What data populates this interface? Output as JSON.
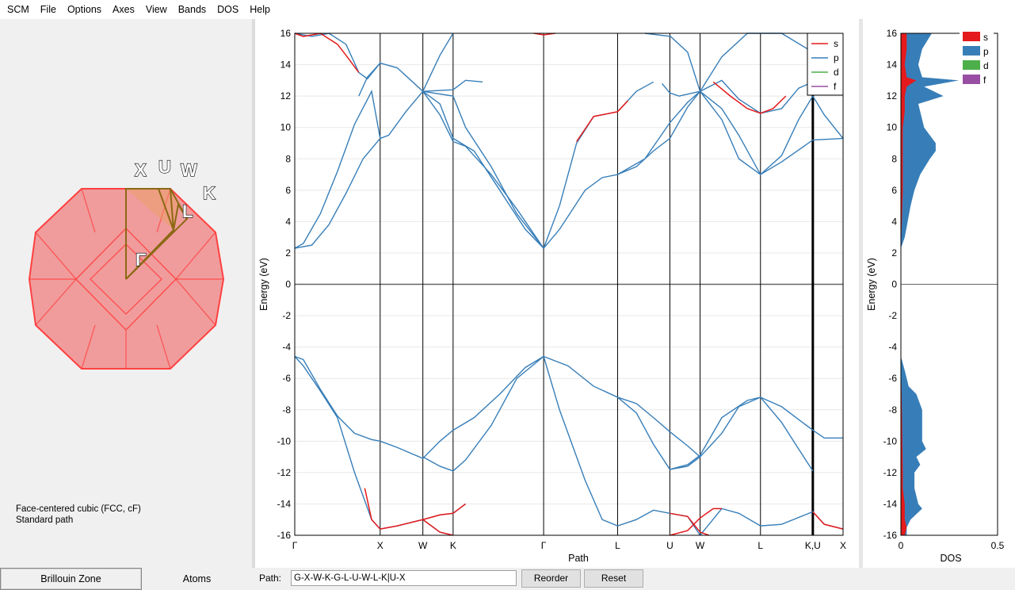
{
  "menu": [
    "SCM",
    "File",
    "Options",
    "Axes",
    "View",
    "Bands",
    "DOS",
    "Help"
  ],
  "brillouin": {
    "points": {
      "X": "X",
      "U": "U",
      "W": "W",
      "K": "K",
      "L": "L",
      "G": "Γ"
    },
    "lattice_line1": "Face-centered cubic (FCC, cF)",
    "lattice_line2": "Standard path",
    "fill_color": "#f08080",
    "edge_color": "#ff4040",
    "path_color": "#8b6914"
  },
  "tabs": {
    "brillouin": "Brillouin Zone",
    "atoms": "Atoms"
  },
  "bottom": {
    "path_label": "Path:",
    "path_value": "G-X-W-K-G-L-U-W-L-K|U-X",
    "reorder": "Reorder",
    "reset": "Reset"
  },
  "chart_data": [
    {
      "type": "line",
      "xlabel": "Path",
      "ylabel": "Energy (eV)",
      "ylim": [
        -16,
        16
      ],
      "yticks": [
        -16,
        -14,
        -12,
        -10,
        -8,
        -6,
        -4,
        -2,
        0,
        2,
        4,
        6,
        8,
        10,
        12,
        14,
        16
      ],
      "kpoints": [
        {
          "label": "Γ",
          "x": 0
        },
        {
          "label": "X",
          "x": 1.0
        },
        {
          "label": "W",
          "x": 1.5
        },
        {
          "label": "K",
          "x": 1.854
        },
        {
          "label": "Γ",
          "x": 2.914
        },
        {
          "label": "L",
          "x": 3.78
        },
        {
          "label": "U",
          "x": 4.392
        },
        {
          "label": "W",
          "x": 4.746
        },
        {
          "label": "L",
          "x": 5.453
        },
        {
          "label": "K,U",
          "x": 6.066
        },
        {
          "label": "X",
          "x": 6.42
        }
      ],
      "legend": [
        "s",
        "p",
        "d",
        "f"
      ],
      "legend_placement": "top-right",
      "colors": {
        "s": "#e41a1c",
        "p": "#377eb8",
        "d": "#4daf4a",
        "f": "#984ea3"
      },
      "series": [
        {
          "x": [
            0,
            0.1,
            0.3,
            0.5,
            0.7,
            0.9,
            1.0
          ],
          "y": [
            2.3,
            2.6,
            4.5,
            7.2,
            10.2,
            12.3,
            9.3
          ]
        },
        {
          "x": [
            0,
            0.2,
            0.4,
            0.6,
            0.8,
            1.0
          ],
          "y": [
            2.3,
            2.5,
            3.8,
            5.8,
            8.0,
            9.3
          ]
        },
        {
          "x": [
            0,
            0.2,
            0.4,
            0.6,
            0.75,
            0.85,
            1.0
          ],
          "y": [
            16,
            15.8,
            16,
            15.3,
            13.5,
            13.1,
            14.1
          ]
        },
        {
          "x": [
            0.75,
            0.85,
            1.0,
            1.2,
            1.5
          ],
          "y": [
            12.0,
            13.2,
            14.1,
            13.8,
            12.3
          ]
        },
        {
          "x": [
            1.0,
            1.1,
            1.3,
            1.5
          ],
          "y": [
            9.3,
            9.5,
            11.0,
            12.3
          ]
        },
        {
          "x": [
            1.5,
            1.7,
            1.854
          ],
          "y": [
            12.3,
            14.6,
            16
          ]
        },
        {
          "x": [
            1.5,
            1.854,
            2.0,
            2.2
          ],
          "y": [
            12.3,
            12.4,
            13.0,
            12.9
          ]
        },
        {
          "x": [
            1.5,
            1.7,
            1.854,
            2.1,
            2.4,
            2.7,
            2.914
          ],
          "y": [
            12.3,
            11.5,
            9.3,
            8.5,
            6.0,
            3.5,
            2.3
          ]
        },
        {
          "x": [
            1.5,
            1.854,
            2.0,
            2.3,
            2.6,
            2.914
          ],
          "y": [
            12.3,
            12.0,
            10.0,
            7.5,
            4.5,
            2.3
          ]
        },
        {
          "x": [
            1.5,
            1.7,
            1.854,
            2.0,
            2.3,
            2.6,
            2.914
          ],
          "y": [
            12.3,
            10.8,
            9.1,
            8.8,
            7.0,
            4.8,
            2.3
          ]
        },
        {
          "x": [
            2.914,
            3.1,
            3.4,
            3.6,
            3.78
          ],
          "y": [
            2.3,
            3.5,
            6.0,
            6.8,
            7.0
          ]
        },
        {
          "x": [
            2.914,
            3.1,
            3.3,
            3.5,
            3.78,
            4.0,
            4.2
          ],
          "y": [
            2.3,
            5.0,
            9.0,
            10.7,
            11.0,
            12.3,
            12.9
          ]
        },
        {
          "x": [
            3.78,
            4.0,
            4.2,
            4.392,
            4.6,
            4.746
          ],
          "y": [
            7.0,
            7.5,
            8.5,
            9.3,
            11.3,
            12.3
          ]
        },
        {
          "x": [
            3.78,
            4.1,
            4.392,
            4.6,
            4.746
          ],
          "y": [
            7.0,
            8.0,
            10.3,
            11.6,
            12.3
          ]
        },
        {
          "x": [
            4.3,
            4.392,
            4.5,
            4.746
          ],
          "y": [
            12.8,
            12.2,
            12.0,
            12.3
          ]
        },
        {
          "x": [
            4.1,
            4.4,
            4.6,
            4.746
          ],
          "y": [
            16,
            15.8,
            14.8,
            12.3
          ]
        },
        {
          "x": [
            4.746,
            5.0,
            5.2,
            5.453,
            5.7,
            5.9,
            6.066
          ],
          "y": [
            12.3,
            11.2,
            9.5,
            7.0,
            8.2,
            10.5,
            12.0
          ]
        },
        {
          "x": [
            4.746,
            5.0,
            5.2,
            5.453,
            5.7,
            6.066,
            6.42
          ],
          "y": [
            12.3,
            10.5,
            8.0,
            7.0,
            7.8,
            9.2,
            9.3
          ]
        },
        {
          "x": [
            4.746,
            5.0,
            5.2,
            5.453,
            5.7,
            5.9,
            6.066
          ],
          "y": [
            12.3,
            13.0,
            11.8,
            10.9,
            11.2,
            12.5,
            12.9
          ]
        },
        {
          "x": [
            6.066,
            6.2,
            6.42
          ],
          "y": [
            12.0,
            10.8,
            9.3
          ]
        },
        {
          "x": [
            4.746,
            5.0,
            5.3,
            5.7,
            6.066,
            6.2
          ],
          "y": [
            12.3,
            14.5,
            16,
            16,
            14.8,
            12.5
          ]
        },
        {
          "x": [
            0,
            0.1,
            0.3,
            0.5,
            0.7,
            0.9,
            1.0
          ],
          "y": [
            -4.6,
            -5.2,
            -6.8,
            -8.5,
            -12.0,
            -15.0,
            -15.6
          ]
        },
        {
          "x": [
            0,
            0.1,
            0.3,
            0.5,
            0.7,
            0.9,
            1.0
          ],
          "y": [
            -4.6,
            -4.8,
            -6.7,
            -8.4,
            -9.5,
            -9.9,
            -10.0
          ]
        },
        {
          "x": [
            1.0,
            1.2,
            1.5,
            1.7,
            1.854,
            2.0
          ],
          "y": [
            -15.6,
            -15.4,
            -15.0,
            -14.7,
            -14.6,
            -14.0
          ]
        },
        {
          "x": [
            1.0,
            1.2,
            1.5,
            1.7,
            1.854,
            2.1,
            2.4,
            2.7,
            2.914
          ],
          "y": [
            -10.0,
            -10.4,
            -11.1,
            -10.0,
            -9.3,
            -8.5,
            -7.0,
            -5.3,
            -4.6
          ]
        },
        {
          "x": [
            1.5,
            1.7,
            1.854,
            2.0,
            2.3,
            2.6,
            2.914
          ],
          "y": [
            -11.0,
            -11.6,
            -11.9,
            -11.2,
            -9.0,
            -6.0,
            -4.6
          ]
        },
        {
          "x": [
            1.5,
            1.7,
            1.854
          ],
          "y": [
            -15.0,
            -15.8,
            -16
          ]
        },
        {
          "x": [
            2.914,
            3.1,
            3.4,
            3.6,
            3.78,
            4.0,
            4.2,
            4.392,
            4.6,
            4.746
          ],
          "y": [
            -4.6,
            -8.0,
            -12.5,
            -15.0,
            -15.4,
            -15.0,
            -14.4,
            -14.6,
            -14.8,
            -16
          ]
        },
        {
          "x": [
            2.914,
            3.2,
            3.5,
            3.78,
            4.0,
            4.2,
            4.392,
            4.6,
            4.746
          ],
          "y": [
            -4.6,
            -5.2,
            -6.5,
            -7.2,
            -7.6,
            -8.5,
            -9.4,
            -10.3,
            -11.0
          ]
        },
        {
          "x": [
            4.392,
            4.6,
            4.746,
            5.0,
            5.3,
            5.453,
            5.7,
            6.066,
            6.2,
            6.42
          ],
          "y": [
            -11.8,
            -11.5,
            -10.9,
            -8.5,
            -7.4,
            -7.2,
            -7.8,
            -9.3,
            -9.8,
            -9.8
          ]
        },
        {
          "x": [
            3.78,
            4.0,
            4.2,
            4.392,
            4.6,
            4.746,
            5.0,
            5.2,
            5.453,
            5.7,
            5.9,
            6.066
          ],
          "y": [
            -7.2,
            -8.2,
            -10.2,
            -11.8,
            -11.6,
            -11.0,
            -9.5,
            -7.8,
            -7.2,
            -8.8,
            -10.5,
            -11.9
          ]
        },
        {
          "x": [
            4.746,
            5.0,
            5.2,
            5.453,
            5.7,
            6.066,
            6.2,
            6.42
          ],
          "y": [
            -16,
            -14.3,
            -14.6,
            -15.4,
            -15.3,
            -14.5,
            -15.3,
            -15.6
          ]
        }
      ],
      "s_segments": [
        {
          "x": [
            0,
            0.1,
            0.3,
            0.5,
            0.6,
            0.75
          ],
          "y": [
            16,
            15.8,
            16,
            15.3,
            14.6,
            13.5
          ]
        },
        {
          "x": [
            2.8,
            2.914,
            3.05
          ],
          "y": [
            16,
            15.9,
            16
          ]
        },
        {
          "x": [
            3.3,
            3.5,
            3.78,
            3.9
          ],
          "y": [
            9.1,
            10.7,
            11.0,
            11.7
          ]
        },
        {
          "x": [
            4.9,
            5.1,
            5.3,
            5.453,
            5.6,
            5.75
          ],
          "y": [
            12.9,
            12.0,
            11.2,
            10.9,
            11.2,
            12.0
          ]
        },
        {
          "x": [
            0.82,
            0.9,
            1.0
          ],
          "y": [
            -13.0,
            -15.0,
            -15.6
          ]
        },
        {
          "x": [
            1.0,
            1.2,
            1.5,
            1.7,
            1.854,
            2.0
          ],
          "y": [
            -15.6,
            -15.4,
            -15.0,
            -14.7,
            -14.6,
            -14.0
          ]
        },
        {
          "x": [
            1.5,
            1.7,
            1.854
          ],
          "y": [
            -15.0,
            -15.8,
            -16
          ]
        },
        {
          "x": [
            4.392,
            4.6,
            4.746,
            4.85
          ],
          "y": [
            -14.6,
            -14.8,
            -15.8,
            -16
          ]
        },
        {
          "x": [
            4.392,
            4.6,
            4.746,
            4.9,
            5.0
          ],
          "y": [
            -16,
            -15.7,
            -14.9,
            -14.3,
            -14.3
          ]
        },
        {
          "x": [
            6.066,
            6.2,
            6.42
          ],
          "y": [
            -14.5,
            -15.3,
            -15.6
          ]
        }
      ]
    },
    {
      "type": "area",
      "xlabel": "DOS",
      "ylabel": "Energy (eV)",
      "xlim": [
        0,
        0.5
      ],
      "xticks": [
        0,
        0.5
      ],
      "ylim": [
        -16,
        16
      ],
      "legend": [
        "s",
        "p",
        "d",
        "f"
      ],
      "legend_placement": "top-right",
      "p_curve": {
        "y": [
          16,
          15,
          14,
          13.2,
          13.0,
          12.6,
          12.0,
          11.5,
          11.0,
          10.0,
          9.0,
          8.5,
          8.0,
          7.0,
          6.0,
          5.0,
          4.0,
          3.0,
          2.3
        ],
        "x": [
          0.16,
          0.11,
          0.09,
          0.11,
          0.3,
          0.12,
          0.22,
          0.09,
          0.1,
          0.12,
          0.18,
          0.18,
          0.15,
          0.1,
          0.07,
          0.05,
          0.035,
          0.02,
          0
        ]
      },
      "p_curve_valence": {
        "y": [
          -4.6,
          -5.5,
          -6.5,
          -7.0,
          -8.0,
          -9.0,
          -10.0,
          -10.5,
          -11.0,
          -11.5,
          -12.0,
          -13.0,
          -14.0,
          -14.3,
          -15.0,
          -15.5,
          -16
        ],
        "x": [
          0,
          0.02,
          0.04,
          0.08,
          0.11,
          0.11,
          0.11,
          0.13,
          0.08,
          0.1,
          0.07,
          0.07,
          0.09,
          0.11,
          0.05,
          0.03,
          0.03
        ]
      },
      "s_curve": {
        "y": [
          16,
          15,
          14,
          13.2,
          13.0,
          12.6,
          12.0,
          11.0,
          10.0,
          8.0,
          6.0,
          4.0,
          2.3
        ],
        "x": [
          0.03,
          0.03,
          0.02,
          0.03,
          0.08,
          0.03,
          0.02,
          0.02,
          0.01,
          0.01,
          0.01,
          0.005,
          0
        ]
      },
      "s_curve_valence": {
        "y": [
          -4.6,
          -8.0,
          -12.0,
          -13.0,
          -14.0,
          -15.0,
          -15.5,
          -16
        ],
        "x": [
          0,
          0.005,
          0.01,
          0.01,
          0.02,
          0.02,
          0.03,
          0.02
        ]
      }
    }
  ]
}
